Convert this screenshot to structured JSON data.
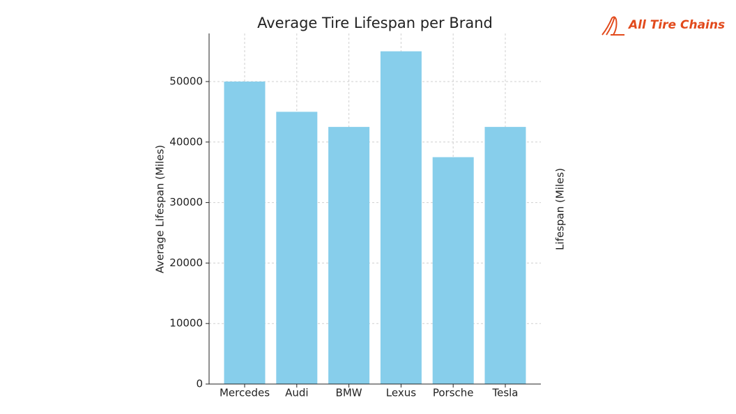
{
  "chart_data": {
    "type": "bar",
    "title": "Average Tire Lifespan per Brand",
    "categories": [
      "Mercedes",
      "Audi",
      "BMW",
      "Lexus",
      "Porsche",
      "Tesla"
    ],
    "values": [
      50000,
      45000,
      42500,
      55000,
      37500,
      42500
    ],
    "color": "#87ceeb",
    "ylabel": "Average Lifespan (Miles)",
    "y2label": "Lifespan (Miles)",
    "ylim": [
      0,
      57950
    ],
    "yticks": [
      0,
      10000,
      20000,
      30000,
      40000,
      50000
    ],
    "grid": true
  },
  "logo": {
    "text": "All Tire Chains"
  }
}
